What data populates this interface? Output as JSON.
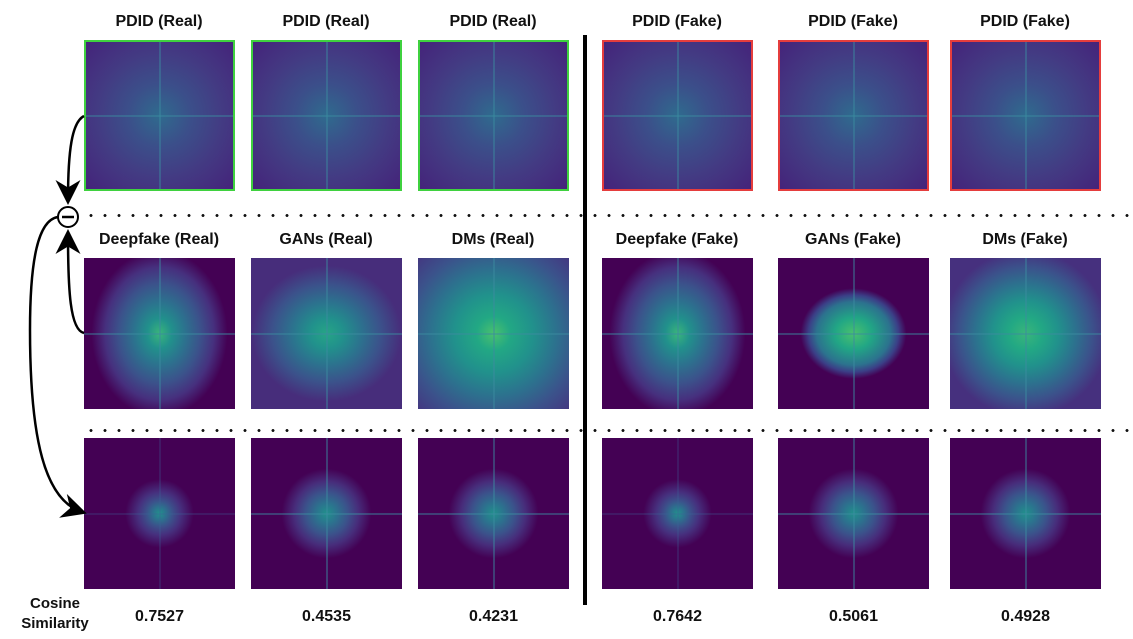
{
  "row1_titles": [
    "PDID (Real)",
    "PDID (Real)",
    "PDID (Real)",
    "PDID (Fake)",
    "PDID (Fake)",
    "PDID (Fake)"
  ],
  "row2_titles": [
    "Deepfake (Real)",
    "GANs (Real)",
    "DMs (Real)",
    "Deepfake (Fake)",
    "GANs (Fake)",
    "DMs (Fake)"
  ],
  "similarity_label_line1": "Cosine",
  "similarity_label_line2": "Similarity",
  "similarity_values": [
    "0.7527",
    "0.4535",
    "0.4231",
    "0.7642",
    "0.5061",
    "0.4928"
  ],
  "colors": {
    "real_border": "#3fd13f",
    "fake_border": "#e53d3d"
  },
  "operator_symbol": "minus-circle-icon"
}
